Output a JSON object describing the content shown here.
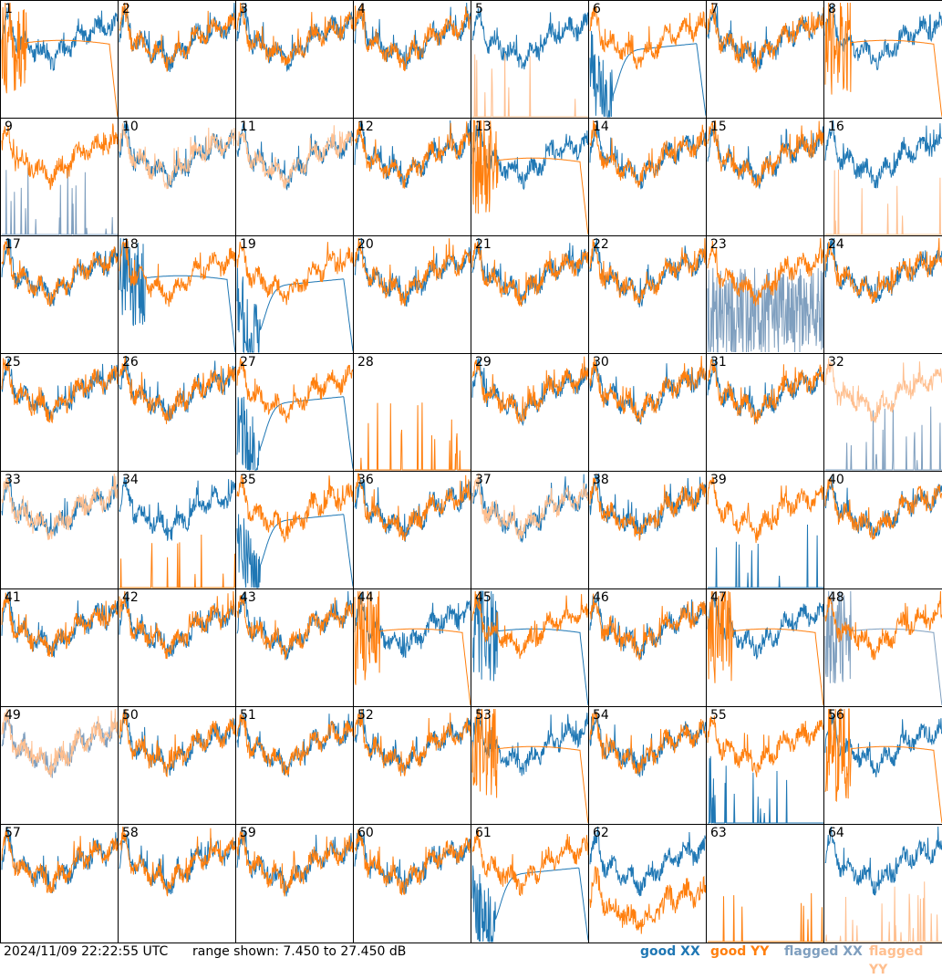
{
  "footer": {
    "timestamp": "2024/11/09 22:22:55 UTC",
    "range_text": "range shown: 7.450 to 27.450 dB"
  },
  "legend": {
    "good_xx": "good XX",
    "good_yy": "good YY",
    "flagged_xx": "flagged XX",
    "flagged_yy": "flagged YY"
  },
  "colors": {
    "good_xx": "#1f77b4",
    "good_yy": "#ff7f0e",
    "flagged_xx": "#7f9fbf",
    "flagged_yy": "#ffbf8f"
  },
  "chart_data": {
    "type": "line",
    "xlabel": "",
    "ylabel": "",
    "ylim": [
      7.45,
      27.45
    ],
    "grid": false,
    "legend_position": "bottom-right",
    "panel_labels": [
      "1",
      "2",
      "3",
      "4",
      "5",
      "6",
      "7",
      "8",
      "9",
      "10",
      "11",
      "12",
      "13",
      "14",
      "15",
      "16",
      "17",
      "18",
      "19",
      "20",
      "21",
      "22",
      "23",
      "24",
      "25",
      "26",
      "27",
      "28",
      "29",
      "30",
      "31",
      "32",
      "33",
      "34",
      "35",
      "36",
      "37",
      "38",
      "39",
      "40",
      "41",
      "42",
      "43",
      "44",
      "45",
      "46",
      "47",
      "48",
      "49",
      "50",
      "51",
      "52",
      "53",
      "54",
      "55",
      "56",
      "57",
      "58",
      "59",
      "60",
      "61",
      "62",
      "63",
      "64"
    ],
    "panels": {
      "1": {
        "xx": "normal",
        "yy": "plateau",
        "flagged": []
      },
      "5": {
        "xx": "normal",
        "yy": "spikes",
        "flagged": [
          "yy"
        ]
      },
      "6": {
        "xx": "dip",
        "yy": "normal",
        "flagged": []
      },
      "8": {
        "xx": "normal",
        "yy": "plateau",
        "flagged": []
      },
      "9": {
        "xx": "spikes",
        "yy": "normal",
        "flagged": [
          "xx"
        ]
      },
      "10": {
        "xx": "normal",
        "yy": "normal",
        "flagged": [
          "yy"
        ]
      },
      "11": {
        "xx": "normal",
        "yy": "normal",
        "flagged": [
          "yy"
        ]
      },
      "13": {
        "xx": "normal",
        "yy": "plateau",
        "flagged": []
      },
      "16": {
        "xx": "normal",
        "yy": "spikes",
        "flagged": [
          "yy"
        ]
      },
      "18": {
        "xx": "plateau",
        "yy": "normal",
        "flagged": []
      },
      "19": {
        "xx": "dip",
        "yy": "normal",
        "flagged": []
      },
      "23": {
        "xx": "noisy",
        "yy": "normal",
        "flagged": [
          "xx"
        ]
      },
      "27": {
        "xx": "dip",
        "yy": "normal",
        "flagged": []
      },
      "28": {
        "xx": "none",
        "yy": "spikes",
        "flagged": []
      },
      "32": {
        "xx": "spikes",
        "yy": "normal",
        "flagged": [
          "xx",
          "yy"
        ]
      },
      "33": {
        "xx": "normal",
        "yy": "normal",
        "flagged": [
          "yy"
        ]
      },
      "34": {
        "xx": "normal",
        "yy": "spikes",
        "flagged": []
      },
      "35": {
        "xx": "dip",
        "yy": "normal",
        "flagged": []
      },
      "37": {
        "xx": "normal",
        "yy": "normal",
        "flagged": [
          "yy"
        ]
      },
      "39": {
        "xx": "spikes",
        "yy": "normal",
        "flagged": []
      },
      "44": {
        "xx": "normal",
        "yy": "plateau",
        "flagged": []
      },
      "45": {
        "xx": "plateau",
        "yy": "normal",
        "flagged": []
      },
      "47": {
        "xx": "normal",
        "yy": "plateau",
        "flagged": []
      },
      "48": {
        "xx": "plateau",
        "yy": "normal",
        "flagged": [
          "xx"
        ]
      },
      "49": {
        "xx": "normal",
        "yy": "normal",
        "flagged": [
          "xx",
          "yy"
        ]
      },
      "53": {
        "xx": "normal",
        "yy": "plateau",
        "flagged": []
      },
      "55": {
        "xx": "spikes",
        "yy": "normal",
        "flagged": []
      },
      "56": {
        "xx": "normal",
        "yy": "plateau",
        "flagged": []
      },
      "61": {
        "xx": "dip",
        "yy": "normal",
        "flagged": []
      },
      "62": {
        "xx": "normal",
        "yy": "low",
        "flagged": []
      },
      "63": {
        "xx": "none",
        "yy": "spikes",
        "flagged": []
      },
      "64": {
        "xx": "normal",
        "yy": "spikes",
        "flagged": [
          "yy"
        ]
      }
    }
  }
}
